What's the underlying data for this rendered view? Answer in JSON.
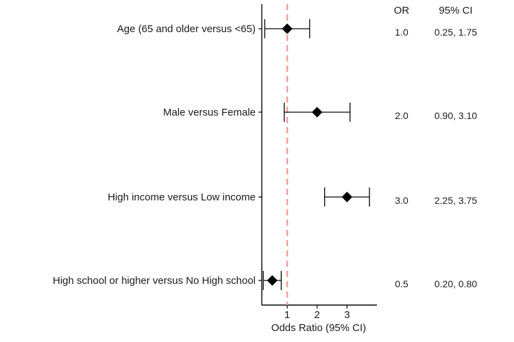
{
  "chart_data": {
    "type": "scatter",
    "title": "",
    "xlabel": "Odds Ratio (95% CI)",
    "ylabel": "",
    "xlim": [
      0.15,
      4.0
    ],
    "x_ticks": [
      1,
      2,
      3
    ],
    "x_tick_labels": [
      "1",
      "2",
      "3"
    ],
    "reference_line": {
      "x": 1,
      "style": "dashed",
      "color": "#f4a09a"
    },
    "grid": false,
    "columns": {
      "or_header": "OR",
      "ci_header": "95% CI"
    },
    "marker_color": "#000000",
    "rows": [
      {
        "label": "Age (65 and older versus <65)",
        "or": 1.0,
        "lower": 0.25,
        "upper": 1.75,
        "or_text": "1.0",
        "ci_text": "0.25, 1.75"
      },
      {
        "label": "Male versus Female",
        "or": 2.0,
        "lower": 0.9,
        "upper": 3.1,
        "or_text": "2.0",
        "ci_text": "0.90, 3.10"
      },
      {
        "label": "High income versus Low income",
        "or": 3.0,
        "lower": 2.25,
        "upper": 3.75,
        "or_text": "3.0",
        "ci_text": "2.25, 3.75"
      },
      {
        "label": "High school or higher versus No High school",
        "or": 0.5,
        "lower": 0.2,
        "upper": 0.8,
        "or_text": "0.5",
        "ci_text": "0.20, 0.80"
      }
    ]
  }
}
